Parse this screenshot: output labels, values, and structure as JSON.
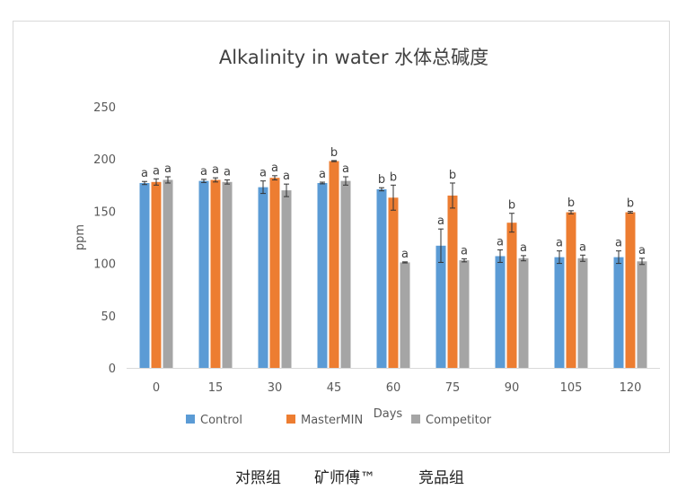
{
  "chart_data": {
    "type": "bar",
    "title": "Alkalinity in water 水体总碱度",
    "xlabel": "Days",
    "ylabel": "ppm",
    "ylim": [
      0,
      250
    ],
    "yticks": [
      "0",
      "50",
      "100",
      "150",
      "200",
      "250"
    ],
    "categories": [
      "0",
      "15",
      "30",
      "45",
      "60",
      "75",
      "90",
      "105",
      "120"
    ],
    "grid": false,
    "legend_position": "bottom",
    "series": [
      {
        "name": "Control",
        "color": "#5b9bd5",
        "values": [
          177,
          179,
          173,
          177,
          171,
          117,
          107,
          106,
          106
        ],
        "errors": [
          1.5,
          1.5,
          6,
          0.8,
          1.5,
          16,
          6,
          6,
          6
        ],
        "letters": [
          "a",
          "a",
          "a",
          "a",
          "b",
          "a",
          "a",
          "a",
          "a"
        ]
      },
      {
        "name": "MasterMIN",
        "color": "#ed7d31",
        "values": [
          178,
          180,
          182,
          198,
          163,
          165,
          139,
          149,
          149
        ],
        "errors": [
          3,
          2,
          2,
          0.5,
          12,
          12,
          9,
          1.5,
          0.8
        ],
        "letters": [
          "a",
          "a",
          "a",
          "b",
          "b",
          "b",
          "b",
          "b",
          "b"
        ]
      },
      {
        "name": "Competitor",
        "color": "#a5a5a5",
        "values": [
          180,
          178,
          170,
          179,
          101,
          103,
          105,
          105,
          102
        ],
        "errors": [
          3,
          2,
          6,
          4,
          0.5,
          1.5,
          2.5,
          3,
          3
        ],
        "letters": [
          "a",
          "a",
          "a",
          "a",
          "a",
          "a",
          "a",
          "a",
          "a"
        ]
      }
    ]
  },
  "footer": {
    "labels": [
      "对照组",
      "矿师傅™",
      "竞品组"
    ]
  },
  "colors": {
    "axis": "#d9d9d9",
    "text": "#595959",
    "error": "#333333"
  }
}
